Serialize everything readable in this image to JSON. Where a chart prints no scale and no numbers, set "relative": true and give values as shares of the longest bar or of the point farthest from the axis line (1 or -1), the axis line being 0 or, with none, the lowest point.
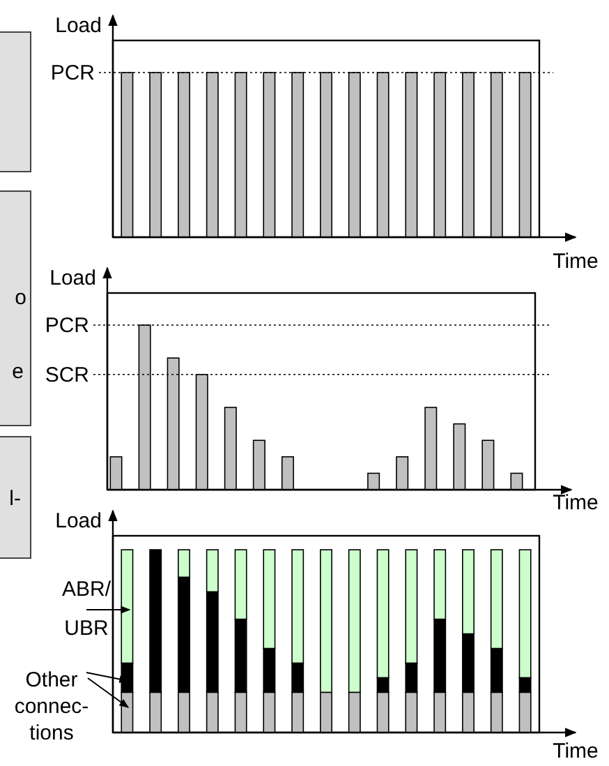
{
  "chart_data": [
    {
      "type": "bar",
      "relative": true,
      "xlabel": "Time",
      "ylabel": "Load",
      "categories": [
        null,
        null,
        null,
        null,
        null,
        null,
        null,
        null,
        null,
        null,
        null,
        null,
        null,
        null,
        null
      ],
      "series": [
        {
          "color": "#c0c0c0",
          "values": [
            1,
            1,
            1,
            1,
            1,
            1,
            1,
            1,
            1,
            1,
            1,
            1,
            1,
            1,
            1
          ]
        }
      ],
      "ref_lines": [
        {
          "axis": "y",
          "value": 1,
          "label": "PCR",
          "line_style": "dotted"
        }
      ]
    },
    {
      "type": "bar",
      "relative": true,
      "xlabel": "Time",
      "ylabel": "Load",
      "categories": [
        null,
        null,
        null,
        null,
        null,
        null,
        null,
        null,
        null,
        null,
        null,
        null,
        null,
        null,
        null
      ],
      "series": [
        {
          "color": "#c0c0c0",
          "values": [
            0.2,
            1,
            0.8,
            0.7,
            0.5,
            0.3,
            0.2,
            0,
            0,
            0.1,
            0.2,
            0.5,
            0.4,
            0.3,
            0.1
          ]
        }
      ],
      "ref_lines": [
        {
          "axis": "y",
          "value": 1,
          "label": "PCR",
          "line_style": "dotted"
        },
        {
          "axis": "y",
          "value": 0.7,
          "label": "SCR",
          "line_style": "dotted"
        }
      ]
    },
    {
      "type": "bar",
      "relative": true,
      "stacked": true,
      "xlabel": "Time",
      "ylabel": "Load",
      "categories": [
        null,
        null,
        null,
        null,
        null,
        null,
        null,
        null,
        null,
        null,
        null,
        null,
        null,
        null,
        null
      ],
      "series": [
        {
          "color": "#c0c0c0",
          "values": [
            0.22,
            0.22,
            0.22,
            0.22,
            0.22,
            0.22,
            0.22,
            0.22,
            0.22,
            0.22,
            0.22,
            0.22,
            0.22,
            0.22,
            0.22
          ]
        },
        {
          "color": "#000000",
          "values": [
            0.16,
            0.78,
            0.63,
            0.55,
            0.4,
            0.24,
            0.16,
            0,
            0,
            0.08,
            0.16,
            0.4,
            0.32,
            0.24,
            0.08
          ]
        },
        {
          "color": "#ccffcc",
          "values": [
            0.62,
            0,
            0.15,
            0.23,
            0.38,
            0.54,
            0.62,
            0.78,
            0.78,
            0.7,
            0.62,
            0.38,
            0.46,
            0.54,
            0.7
          ]
        }
      ],
      "annotations": [
        "ABR/ UBR",
        "Other connec- tions"
      ]
    },
    {
      "type": "other",
      "annotations": [
        "o",
        "e",
        "l-"
      ]
    }
  ]
}
